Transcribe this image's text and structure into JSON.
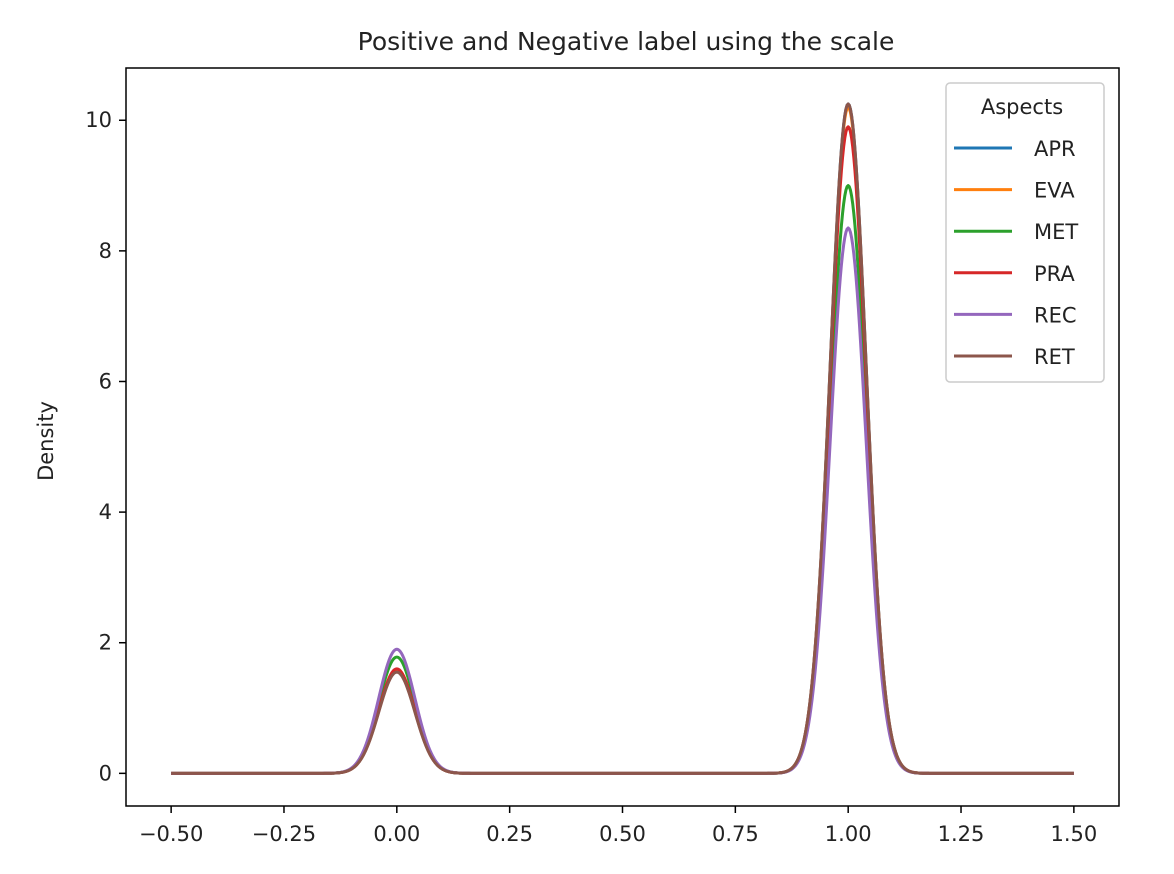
{
  "chart_data": {
    "type": "line",
    "title": "Positive and Negative label using the scale",
    "xlabel": "",
    "ylabel": "Density",
    "xlim": [
      -0.6,
      1.6
    ],
    "ylim": [
      -0.5,
      10.8
    ],
    "xticks": [
      -0.5,
      -0.25,
      0.0,
      0.25,
      0.5,
      0.75,
      1.0,
      1.25,
      1.5
    ],
    "xtick_labels": [
      "−0.50",
      "−0.25",
      "0.00",
      "0.25",
      "0.50",
      "0.75",
      "1.00",
      "1.25",
      "1.50"
    ],
    "yticks": [
      0,
      2,
      4,
      6,
      8,
      10
    ],
    "ytick_labels": [
      "0",
      "2",
      "4",
      "6",
      "8",
      "10"
    ],
    "grid": false,
    "legend": {
      "title": "Aspects",
      "placement": "top-right"
    },
    "x_range": [
      -0.5,
      1.5
    ],
    "peak_sigma": 0.04,
    "series": [
      {
        "name": "APR",
        "color": "#1f77b4",
        "peak_at_0": 1.58,
        "peak_at_1": 10.25
      },
      {
        "name": "EVA",
        "color": "#ff7f0e",
        "peak_at_0": 1.58,
        "peak_at_1": 10.2
      },
      {
        "name": "MET",
        "color": "#2ca02c",
        "peak_at_0": 1.78,
        "peak_at_1": 9.0
      },
      {
        "name": "PRA",
        "color": "#d62728",
        "peak_at_0": 1.6,
        "peak_at_1": 9.9
      },
      {
        "name": "REC",
        "color": "#9467bd",
        "peak_at_0": 1.9,
        "peak_at_1": 8.35
      },
      {
        "name": "RET",
        "color": "#8c564b",
        "peak_at_0": 1.55,
        "peak_at_1": 10.25
      }
    ]
  }
}
